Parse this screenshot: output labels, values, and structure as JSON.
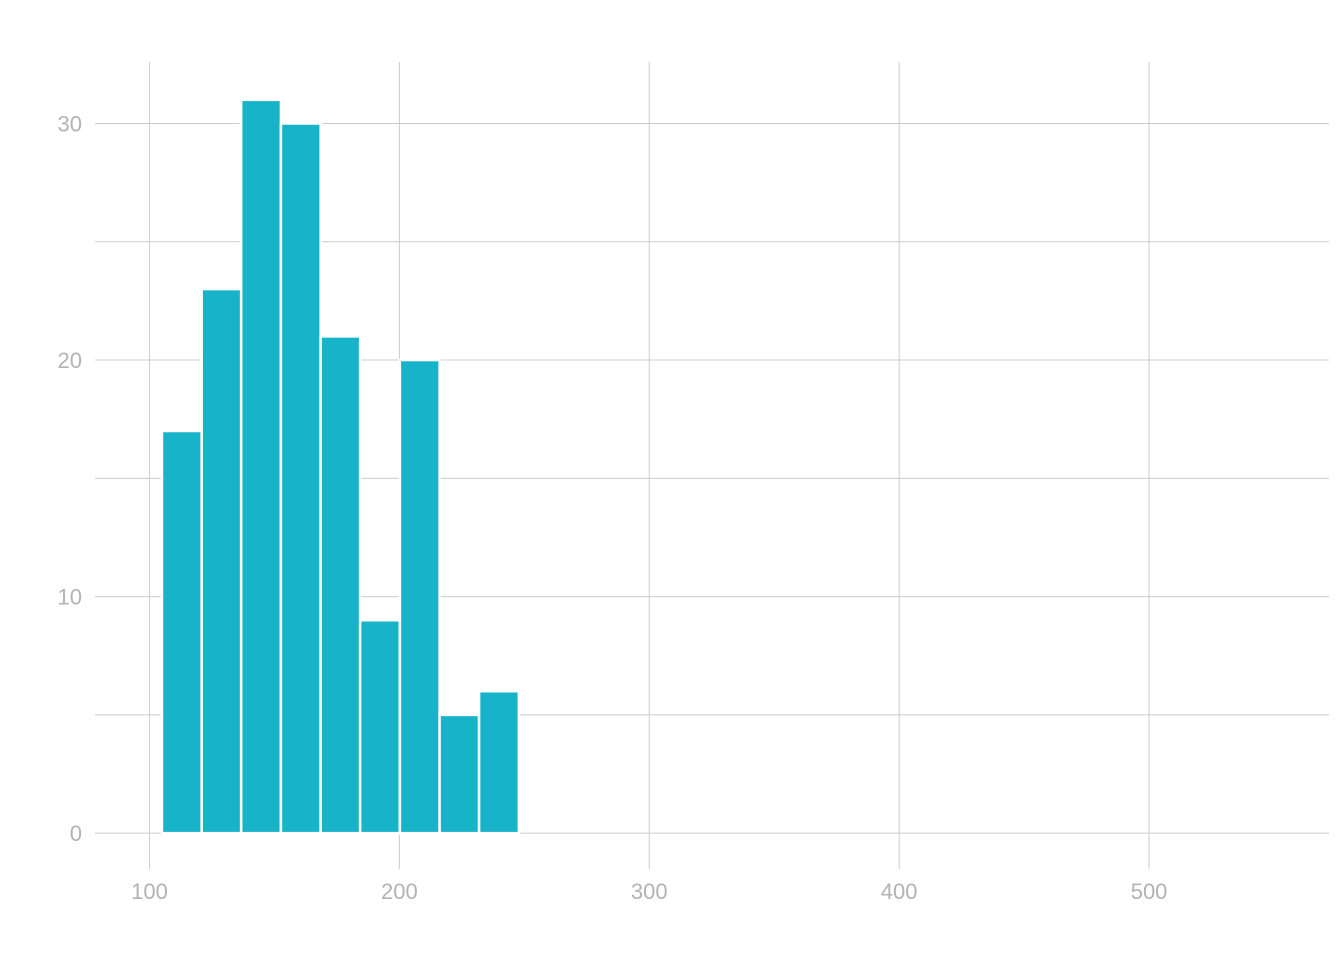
{
  "chart_data": {
    "type": "bar",
    "subtype": "histogram",
    "bins": [
      {
        "start": 105.0,
        "end": 120.9,
        "value": 17
      },
      {
        "start": 120.9,
        "end": 136.7,
        "value": 23
      },
      {
        "start": 136.7,
        "end": 152.6,
        "value": 31
      },
      {
        "start": 152.6,
        "end": 168.5,
        "value": 30
      },
      {
        "start": 168.5,
        "end": 184.3,
        "value": 21
      },
      {
        "start": 184.3,
        "end": 200.2,
        "value": 9
      },
      {
        "start": 200.2,
        "end": 216.1,
        "value": 20
      },
      {
        "start": 216.1,
        "end": 231.9,
        "value": 5
      },
      {
        "start": 231.9,
        "end": 247.8,
        "value": 6
      }
    ],
    "xlim": [
      67,
      572
    ],
    "ylim": [
      -1.6,
      32.6
    ],
    "x_ticks": [
      100,
      200,
      300,
      400,
      500
    ],
    "y_ticks": [
      0,
      10,
      20,
      30
    ],
    "y_minor_ticks": [
      5,
      15,
      25
    ],
    "grid": true,
    "bar_color": "#17b4c9",
    "title": "",
    "xlabel": "",
    "ylabel": ""
  }
}
